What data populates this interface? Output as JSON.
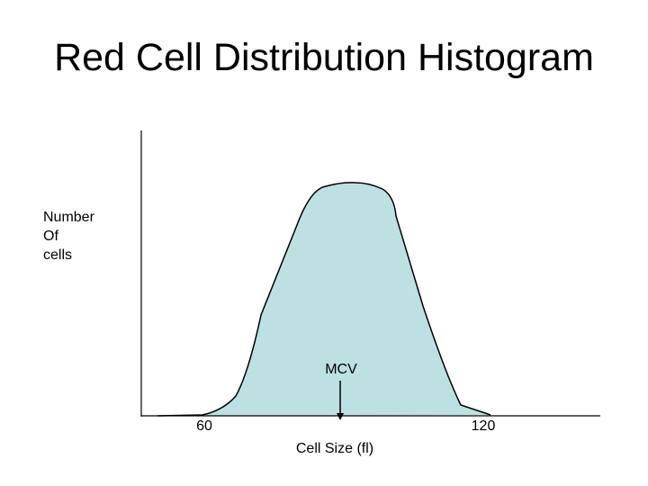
{
  "title": "Red Cell Distribution Histogram",
  "y_label": [
    "Number",
    "Of",
    "cells"
  ],
  "x_label": "Cell Size (fl)",
  "x_ticks": [
    "60",
    "120"
  ],
  "annotation": "MCV",
  "colors": {
    "fill": "#bde0e3",
    "stroke": "#000000",
    "background": "#ffffff"
  }
}
